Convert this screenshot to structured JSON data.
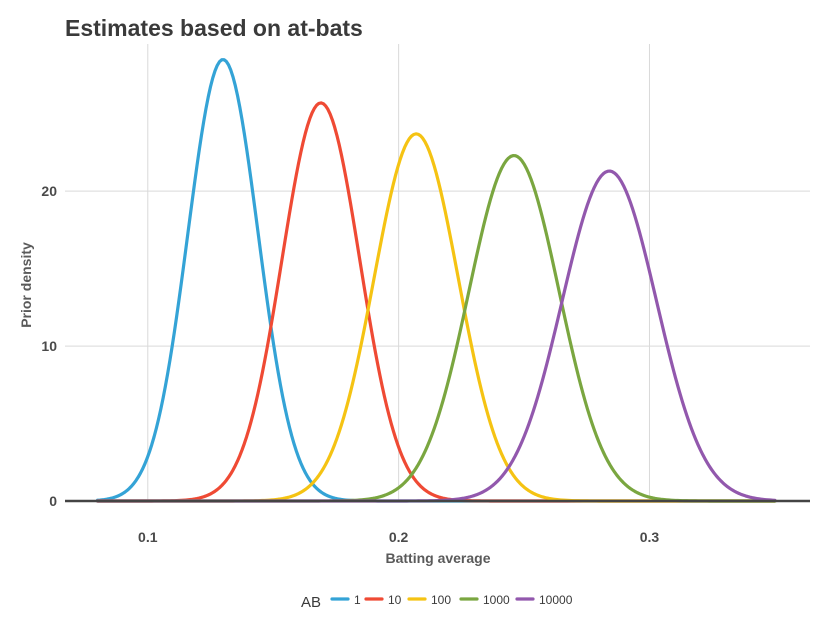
{
  "chart_data": {
    "type": "line",
    "title": "Estimates based on at-bats",
    "xlabel": "Batting average",
    "ylabel": "Prior density",
    "xlim": [
      0.067,
      0.364
    ],
    "ylim": [
      0,
      29.5
    ],
    "x_ticks": [
      0.1,
      0.2,
      0.3
    ],
    "x_tick_labels": [
      "0.1",
      "0.2",
      "0.3"
    ],
    "y_ticks": [
      0,
      10,
      20
    ],
    "y_tick_labels": [
      "0",
      "10",
      "20"
    ],
    "grid": true,
    "legend": {
      "title": "AB",
      "position": "bottom"
    },
    "x_range": [
      0.08,
      0.35
    ],
    "series": [
      {
        "name": "1",
        "color": "#34a3d6",
        "mean": 0.13,
        "sd": 0.014,
        "peak": 28.5
      },
      {
        "name": "10",
        "color": "#ef4a34",
        "mean": 0.169,
        "sd": 0.0155,
        "peak": 25.7
      },
      {
        "name": "100",
        "color": "#f5c313",
        "mean": 0.207,
        "sd": 0.0168,
        "peak": 23.7
      },
      {
        "name": "1000",
        "color": "#7aa640",
        "mean": 0.246,
        "sd": 0.018,
        "peak": 22.3
      },
      {
        "name": "10000",
        "color": "#9258ad",
        "mean": 0.284,
        "sd": 0.0188,
        "peak": 21.3
      }
    ]
  }
}
